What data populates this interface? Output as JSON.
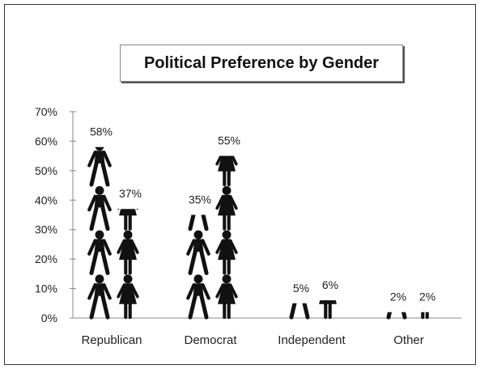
{
  "chart_data": {
    "type": "bar",
    "title": "Political Preference by Gender",
    "categories": [
      "Republican",
      "Democrat",
      "Independent",
      "Other"
    ],
    "series": [
      {
        "values": [
          58,
          35,
          5,
          2
        ],
        "labels": [
          "58%",
          "35%",
          "5%",
          "2%"
        ]
      },
      {
        "values": [
          37,
          55,
          6,
          2
        ],
        "labels": [
          "37%",
          "55%",
          "6%",
          "2%"
        ]
      }
    ],
    "y_ticks": [
      "0%",
      "10%",
      "20%",
      "30%",
      "40%",
      "50%",
      "60%",
      "70%"
    ],
    "ylim": [
      0,
      70
    ],
    "grid": false,
    "legend": "none",
    "icon_per_unit": 15,
    "series_icons": [
      "male-figure-icon",
      "female-figure-icon"
    ],
    "colors": {
      "mark": "#111111",
      "axis": "#888888",
      "text": "#222222",
      "frame": "#333333"
    }
  }
}
